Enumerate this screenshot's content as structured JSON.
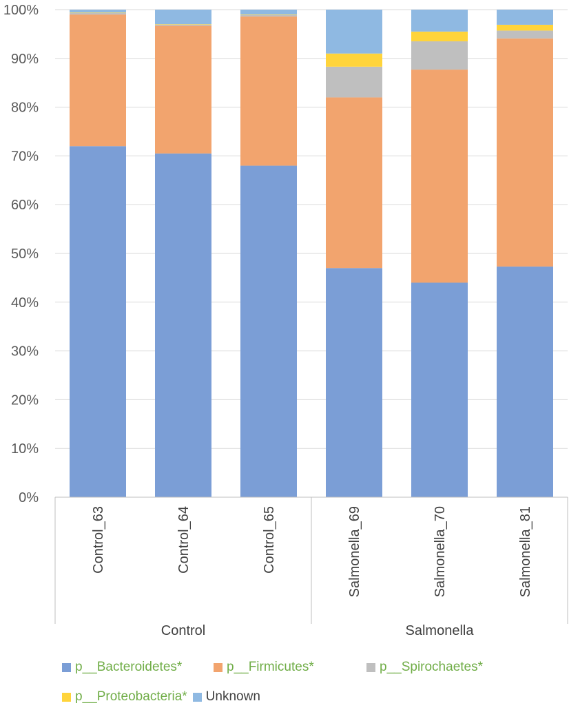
{
  "chart_data": {
    "type": "bar",
    "stacked": true,
    "normalized": true,
    "categories": [
      "Control_63",
      "Control_64",
      "Control_65",
      "Salmonella_69",
      "Salmonella_70",
      "Salmonella_81"
    ],
    "groups": [
      {
        "label": "Control",
        "categories": [
          "Control_63",
          "Control_64",
          "Control_65"
        ]
      },
      {
        "label": "Salmonella",
        "categories": [
          "Salmonella_69",
          "Salmonella_70",
          "Salmonella_81"
        ]
      }
    ],
    "series": [
      {
        "name": "p__Bacteroidetes*",
        "color": "#7b9ed6",
        "values": [
          72.0,
          70.5,
          68.0,
          47.0,
          44.0,
          47.3
        ]
      },
      {
        "name": "p__Firmicutes*",
        "color": "#f2a46e",
        "values": [
          27.0,
          26.2,
          30.6,
          35.0,
          43.7,
          46.8
        ]
      },
      {
        "name": "p__Spirochaetes*",
        "color": "#bfbfbf",
        "values": [
          0.3,
          0.2,
          0.3,
          6.3,
          5.8,
          1.6
        ]
      },
      {
        "name": "p__Proteobacteria*",
        "color": "#ffd43b",
        "values": [
          0.1,
          0.1,
          0.1,
          2.7,
          2.0,
          1.2
        ]
      },
      {
        "name": "Unknown",
        "color": "#8fb9e2",
        "values": [
          0.6,
          3.0,
          1.0,
          9.0,
          4.5,
          3.1
        ]
      }
    ],
    "ylim": [
      0,
      100
    ],
    "yticks": [
      "0%",
      "10%",
      "20%",
      "30%",
      "40%",
      "50%",
      "60%",
      "70%",
      "80%",
      "90%",
      "100%"
    ],
    "grid": true,
    "legend_position": "bottom"
  },
  "legend": {
    "row1": [
      {
        "label": "p__Bacteroidetes*",
        "color": "#7b9ed6"
      },
      {
        "label": "p__Firmicutes*",
        "color": "#f2a46e"
      },
      {
        "label": "p__Spirochaetes*",
        "color": "#bfbfbf"
      }
    ],
    "row2": [
      {
        "label": "p__Proteobacteria*",
        "color": "#ffd43b"
      },
      {
        "label": "Unknown",
        "color": "#8fb9e2"
      }
    ]
  }
}
